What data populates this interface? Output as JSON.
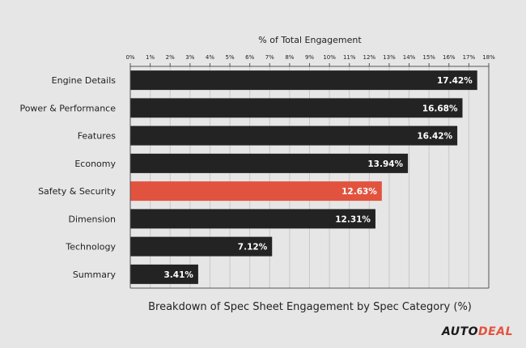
{
  "chart_data": {
    "type": "bar",
    "orientation": "horizontal",
    "title": "% of Total Engagement",
    "caption": "Breakdown of Spec Sheet Engagement by Spec Category (%)",
    "categories": [
      "Engine Details",
      "Power & Performance",
      "Features",
      "Economy",
      "Safety & Security",
      "Dimension",
      "Technology",
      "Summary"
    ],
    "values": [
      17.42,
      16.68,
      16.42,
      13.94,
      12.63,
      12.31,
      7.12,
      3.41
    ],
    "value_labels": [
      "17.42%",
      "16.68%",
      "16.42%",
      "13.94%",
      "12.63%",
      "12.31%",
      "7.12%",
      "3.41%"
    ],
    "highlight_index": 4,
    "xlim": [
      0,
      18
    ],
    "x_ticks": [
      "0%",
      "1%",
      "2%",
      "3%",
      "4%",
      "5%",
      "6%",
      "7%",
      "8%",
      "9%",
      "10%",
      "11%",
      "12%",
      "13%",
      "14%",
      "15%",
      "16%",
      "17%",
      "18%"
    ],
    "x_axis_position": "top",
    "grid": true,
    "colors": {
      "bar": "#232323",
      "highlight": "#e2533f",
      "grid": "#c8c8c8",
      "background": "#e6e6e6"
    }
  },
  "brand": {
    "logo_part1": "AUTO",
    "logo_part2": "DEAL"
  }
}
